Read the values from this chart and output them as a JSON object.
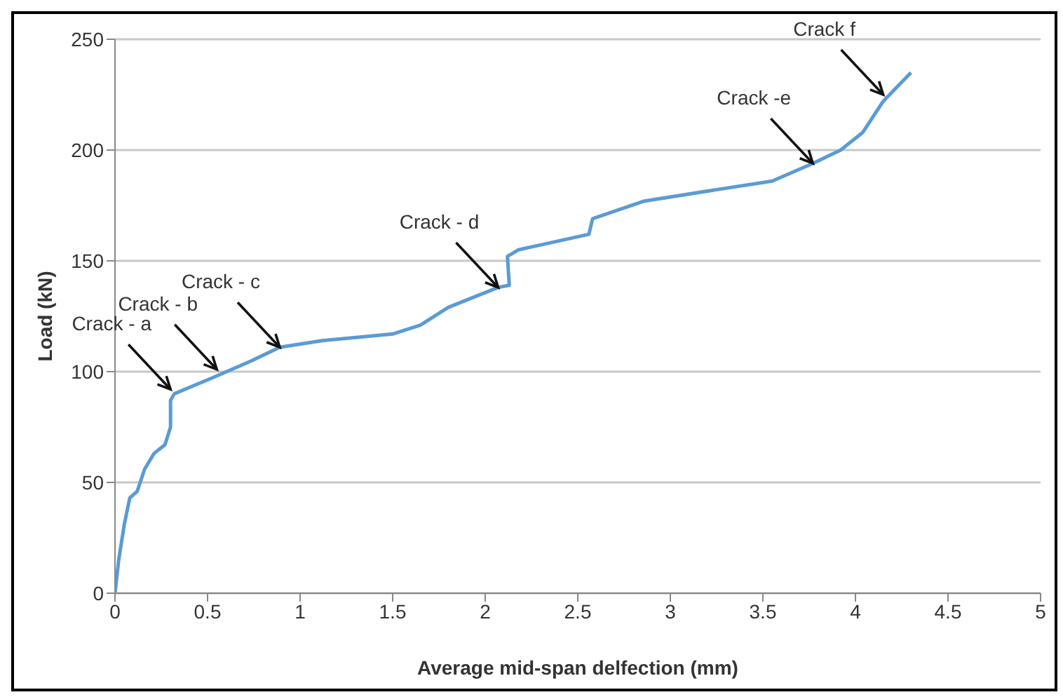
{
  "chart_data": {
    "type": "line",
    "xlabel": "Average mid-span delfection (mm)",
    "ylabel": "Load (kN)",
    "x": [
      0,
      0.02,
      0.05,
      0.08,
      0.12,
      0.16,
      0.21,
      0.27,
      0.3,
      0.3,
      0.32,
      0.52,
      0.74,
      0.89,
      1.12,
      1.5,
      1.65,
      1.8,
      2.07,
      2.13,
      2.12,
      2.18,
      2.56,
      2.58,
      2.86,
      3.24,
      3.55,
      3.77,
      3.92,
      4.04,
      4.15,
      4.3
    ],
    "series": [
      {
        "color": "#5b9bd5",
        "values": [
          0,
          15,
          31,
          43,
          46,
          56,
          63,
          67,
          75,
          87,
          90,
          97,
          105,
          111,
          114,
          117,
          121,
          129,
          138,
          139,
          152,
          155,
          162,
          169,
          177,
          182,
          186,
          194,
          200,
          208,
          222,
          235
        ]
      }
    ],
    "xlim": [
      0,
      5
    ],
    "xticks": [
      0,
      0.5,
      1,
      1.5,
      2,
      2.5,
      3,
      3.5,
      4,
      4.5,
      5
    ],
    "ylim": [
      0,
      250
    ],
    "yticks": [
      0,
      50,
      100,
      150,
      200,
      250
    ],
    "grid": "y",
    "marker": "none",
    "line_style": "solid",
    "legend": false,
    "annotations": [
      {
        "text": "Crack - a",
        "x": 0.3,
        "y": 92
      },
      {
        "text": "Crack - b",
        "x": 0.55,
        "y": 101
      },
      {
        "text": "Crack - c",
        "x": 0.89,
        "y": 111
      },
      {
        "text": "Crack - d",
        "x": 2.07,
        "y": 138
      },
      {
        "text": "Crack -e",
        "x": 3.77,
        "y": 194
      },
      {
        "text": "Crack f",
        "x": 4.15,
        "y": 225
      }
    ]
  }
}
